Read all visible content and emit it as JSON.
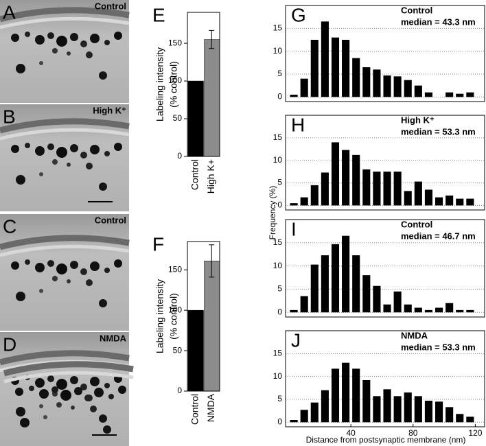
{
  "micrographs": [
    {
      "label": "A",
      "caption": "Control"
    },
    {
      "label": "B",
      "caption": "High K⁺"
    },
    {
      "label": "C",
      "caption": "Control"
    },
    {
      "label": "D",
      "caption": "NMDA"
    }
  ],
  "shared_axes": {
    "ylabel": "Frequency (%)",
    "xlabel": "Distance from postsynaptic membrane (nm)"
  },
  "chart_data": [
    {
      "type": "bar",
      "panel": "E",
      "ylabel": [
        "Labeling intensity",
        "(% control)"
      ],
      "categories": [
        "Control",
        "High K+"
      ],
      "values": [
        100,
        155
      ],
      "errors": [
        0,
        12
      ],
      "colors": [
        "#000000",
        "#8c8c8c"
      ],
      "ylim": [
        0,
        191
      ],
      "yticks": [
        0,
        50,
        100,
        150
      ]
    },
    {
      "type": "bar",
      "panel": "F",
      "ylabel": [
        "Labeling intensity",
        "(% control)"
      ],
      "categories": [
        "Control",
        "NMDA"
      ],
      "values": [
        100,
        161
      ],
      "errors": [
        0,
        20
      ],
      "colors": [
        "#000000",
        "#8c8c8c"
      ],
      "ylim": [
        0,
        185
      ],
      "yticks": [
        0,
        50,
        100,
        150
      ]
    },
    {
      "type": "histogram",
      "panel": "G",
      "annotation": [
        "Control",
        "median = 43.3 nm"
      ],
      "bins": [
        0,
        6.67,
        13.33,
        20,
        26.67,
        33.33,
        40,
        46.67,
        53.33,
        60,
        66.67,
        73.33,
        80,
        86.67,
        93.33,
        100,
        106.67,
        113.33,
        120
      ],
      "values": [
        0.5,
        4,
        12.5,
        16.5,
        13,
        12.5,
        8.5,
        6.5,
        6,
        4.7,
        4.5,
        3.7,
        2.5,
        1,
        0,
        1,
        0.7,
        1
      ],
      "color": "#000000",
      "xlim": [
        -2,
        126
      ],
      "ylim": [
        -1,
        20
      ],
      "yticks": [
        0,
        5,
        10,
        15
      ],
      "grid": true
    },
    {
      "type": "histogram",
      "panel": "H",
      "annotation": [
        "High K⁺",
        "median = 53.3 nm"
      ],
      "bins": [
        0,
        6.67,
        13.33,
        20,
        26.67,
        33.33,
        40,
        46.67,
        53.33,
        60,
        66.67,
        73.33,
        80,
        86.67,
        93.33,
        100,
        106.67,
        113.33,
        120
      ],
      "values": [
        0.5,
        1.8,
        4.5,
        7.3,
        14,
        12.3,
        11.2,
        8,
        7.5,
        7.5,
        7.5,
        3.2,
        5.3,
        3.5,
        1.8,
        2.2,
        1.5,
        1.5
      ],
      "color": "#000000",
      "xlim": [
        -2,
        126
      ],
      "ylim": [
        -1,
        20
      ],
      "yticks": [
        0,
        5,
        10,
        15
      ],
      "grid": true
    },
    {
      "type": "histogram",
      "panel": "I",
      "annotation": [
        "Control",
        "median = 46.7 nm"
      ],
      "bins": [
        0,
        6.67,
        13.33,
        20,
        26.67,
        33.33,
        40,
        46.67,
        53.33,
        60,
        66.67,
        73.33,
        80,
        86.67,
        93.33,
        100,
        106.67,
        113.33,
        120
      ],
      "values": [
        0.5,
        3.5,
        10.3,
        12.3,
        14.7,
        16.5,
        12.3,
        8,
        5.7,
        1.7,
        4.5,
        1.7,
        1,
        0.5,
        1,
        2,
        0.5,
        0.5
      ],
      "color": "#000000",
      "xlim": [
        -2,
        126
      ],
      "ylim": [
        -1,
        20
      ],
      "yticks": [
        0,
        5,
        10,
        15
      ],
      "grid": true
    },
    {
      "type": "histogram",
      "panel": "J",
      "annotation": [
        "NMDA",
        "median = 53.3 nm"
      ],
      "bins": [
        0,
        6.67,
        13.33,
        20,
        26.67,
        33.33,
        40,
        46.67,
        53.33,
        60,
        66.67,
        73.33,
        80,
        86.67,
        93.33,
        100,
        106.67,
        113.33,
        120
      ],
      "values": [
        0.5,
        2.7,
        4.3,
        7,
        11.7,
        13,
        11.7,
        9.2,
        5.7,
        7.2,
        5.7,
        6.5,
        5.7,
        4.7,
        4.5,
        3.3,
        1.8,
        1.2
      ],
      "color": "#000000",
      "xlim": [
        -2,
        126
      ],
      "ylim": [
        -1,
        20
      ],
      "yticks": [
        0,
        5,
        10,
        15
      ],
      "xticks": [
        40,
        80,
        120
      ],
      "grid": true
    }
  ]
}
